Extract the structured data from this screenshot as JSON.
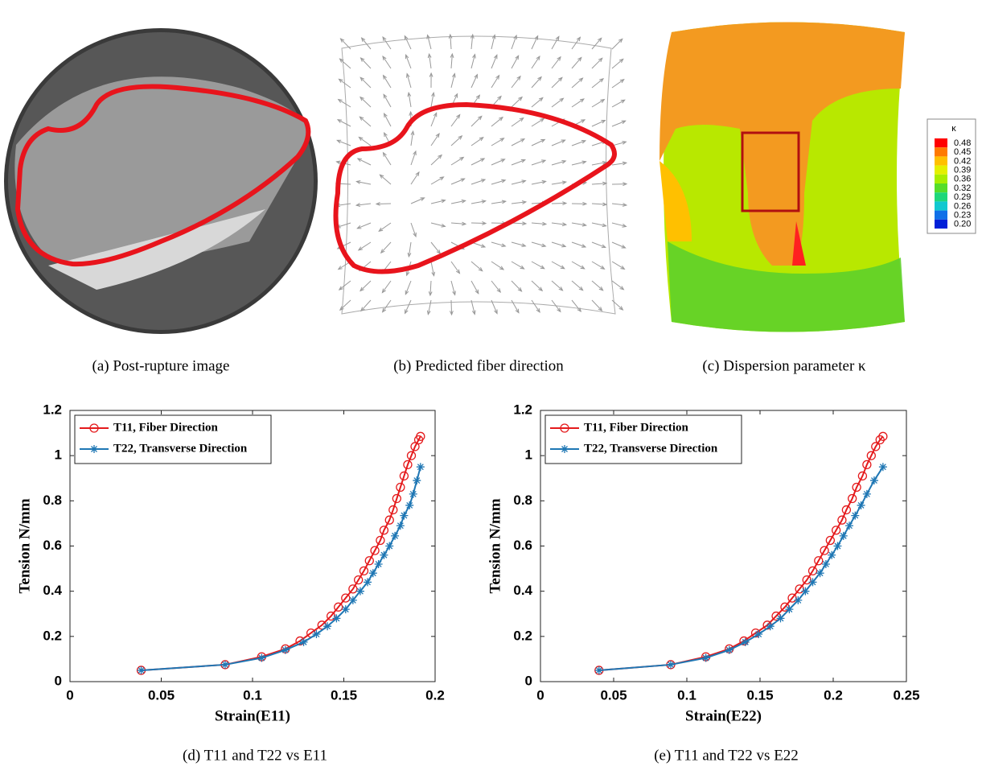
{
  "panels": [
    {
      "caption": "(a) Post-rupture image"
    },
    {
      "caption": "(b) Predicted fiber direction"
    },
    {
      "caption": "(c) Dispersion parameter κ"
    }
  ],
  "colorbar": {
    "title": "κ",
    "labels": [
      "0.48",
      "0.45",
      "0.42",
      "0.39",
      "0.36",
      "0.32",
      "0.29",
      "0.26",
      "0.23",
      "0.20"
    ],
    "colors": [
      "#ff0000",
      "#ff7a00",
      "#ffc000",
      "#e4f000",
      "#a8ee00",
      "#55dd2a",
      "#1ed77a",
      "#10c8d0",
      "#1070e8",
      "#0020d8"
    ]
  },
  "chart_data": [
    {
      "type": "line",
      "caption": "(d) T11 and T22 vs E11",
      "xlabel": "Strain(E11)",
      "ylabel": "Tension N/mm",
      "xlim": [
        0,
        0.2
      ],
      "ylim": [
        0,
        1.2
      ],
      "xticks": [
        0,
        0.05,
        0.1,
        0.15,
        0.2
      ],
      "yticks": [
        0,
        0.2,
        0.4,
        0.6,
        0.8,
        1,
        1.2
      ],
      "series": [
        {
          "name": "T11, Fiber Direction",
          "color": "#e41a1c",
          "marker": "o",
          "x": [
            0.039,
            0.085,
            0.105,
            0.118,
            0.126,
            0.132,
            0.138,
            0.143,
            0.147,
            0.151,
            0.155,
            0.158,
            0.161,
            0.164,
            0.167,
            0.17,
            0.172,
            0.175,
            0.177,
            0.179,
            0.181,
            0.183,
            0.185,
            0.187,
            0.189,
            0.191,
            0.192
          ],
          "values": [
            0.05,
            0.075,
            0.11,
            0.145,
            0.18,
            0.215,
            0.25,
            0.29,
            0.33,
            0.37,
            0.41,
            0.45,
            0.49,
            0.535,
            0.58,
            0.625,
            0.67,
            0.715,
            0.76,
            0.81,
            0.86,
            0.91,
            0.96,
            1.0,
            1.04,
            1.07,
            1.085
          ]
        },
        {
          "name": "T22, Transverse Direction",
          "color": "#1f77b4",
          "marker": "*",
          "x": [
            0.039,
            0.085,
            0.105,
            0.118,
            0.128,
            0.135,
            0.141,
            0.146,
            0.151,
            0.155,
            0.159,
            0.163,
            0.166,
            0.169,
            0.172,
            0.175,
            0.178,
            0.181,
            0.183,
            0.186,
            0.188,
            0.19,
            0.192
          ],
          "values": [
            0.05,
            0.075,
            0.105,
            0.14,
            0.175,
            0.21,
            0.245,
            0.28,
            0.32,
            0.36,
            0.4,
            0.44,
            0.48,
            0.52,
            0.56,
            0.6,
            0.645,
            0.69,
            0.735,
            0.78,
            0.83,
            0.89,
            0.95
          ]
        }
      ]
    },
    {
      "type": "line",
      "caption": "(e) T11 and T22 vs E22",
      "xlabel": "Strain(E22)",
      "ylabel": "Tension N/mm",
      "xlim": [
        0,
        0.25
      ],
      "ylim": [
        0,
        1.2
      ],
      "xticks": [
        0,
        0.05,
        0.1,
        0.15,
        0.2,
        0.25
      ],
      "yticks": [
        0,
        0.2,
        0.4,
        0.6,
        0.8,
        1,
        1.2
      ],
      "series": [
        {
          "name": "T11, Fiber Direction",
          "color": "#e41a1c",
          "marker": "o",
          "x": [
            0.04,
            0.089,
            0.113,
            0.129,
            0.139,
            0.147,
            0.155,
            0.161,
            0.167,
            0.172,
            0.177,
            0.182,
            0.186,
            0.19,
            0.194,
            0.198,
            0.202,
            0.206,
            0.209,
            0.213,
            0.216,
            0.22,
            0.223,
            0.226,
            0.229,
            0.232,
            0.234
          ],
          "values": [
            0.05,
            0.075,
            0.11,
            0.145,
            0.18,
            0.215,
            0.25,
            0.29,
            0.33,
            0.37,
            0.41,
            0.45,
            0.49,
            0.535,
            0.58,
            0.625,
            0.67,
            0.715,
            0.76,
            0.81,
            0.86,
            0.91,
            0.96,
            1.0,
            1.04,
            1.07,
            1.085
          ]
        },
        {
          "name": "T22, Transverse Direction",
          "color": "#1f77b4",
          "marker": "*",
          "x": [
            0.04,
            0.089,
            0.113,
            0.129,
            0.14,
            0.149,
            0.157,
            0.164,
            0.17,
            0.176,
            0.181,
            0.186,
            0.191,
            0.195,
            0.199,
            0.203,
            0.207,
            0.211,
            0.215,
            0.219,
            0.223,
            0.228,
            0.234
          ],
          "values": [
            0.05,
            0.075,
            0.105,
            0.14,
            0.175,
            0.21,
            0.245,
            0.28,
            0.32,
            0.36,
            0.4,
            0.44,
            0.48,
            0.52,
            0.56,
            0.6,
            0.645,
            0.69,
            0.735,
            0.78,
            0.83,
            0.89,
            0.95
          ]
        }
      ]
    }
  ]
}
